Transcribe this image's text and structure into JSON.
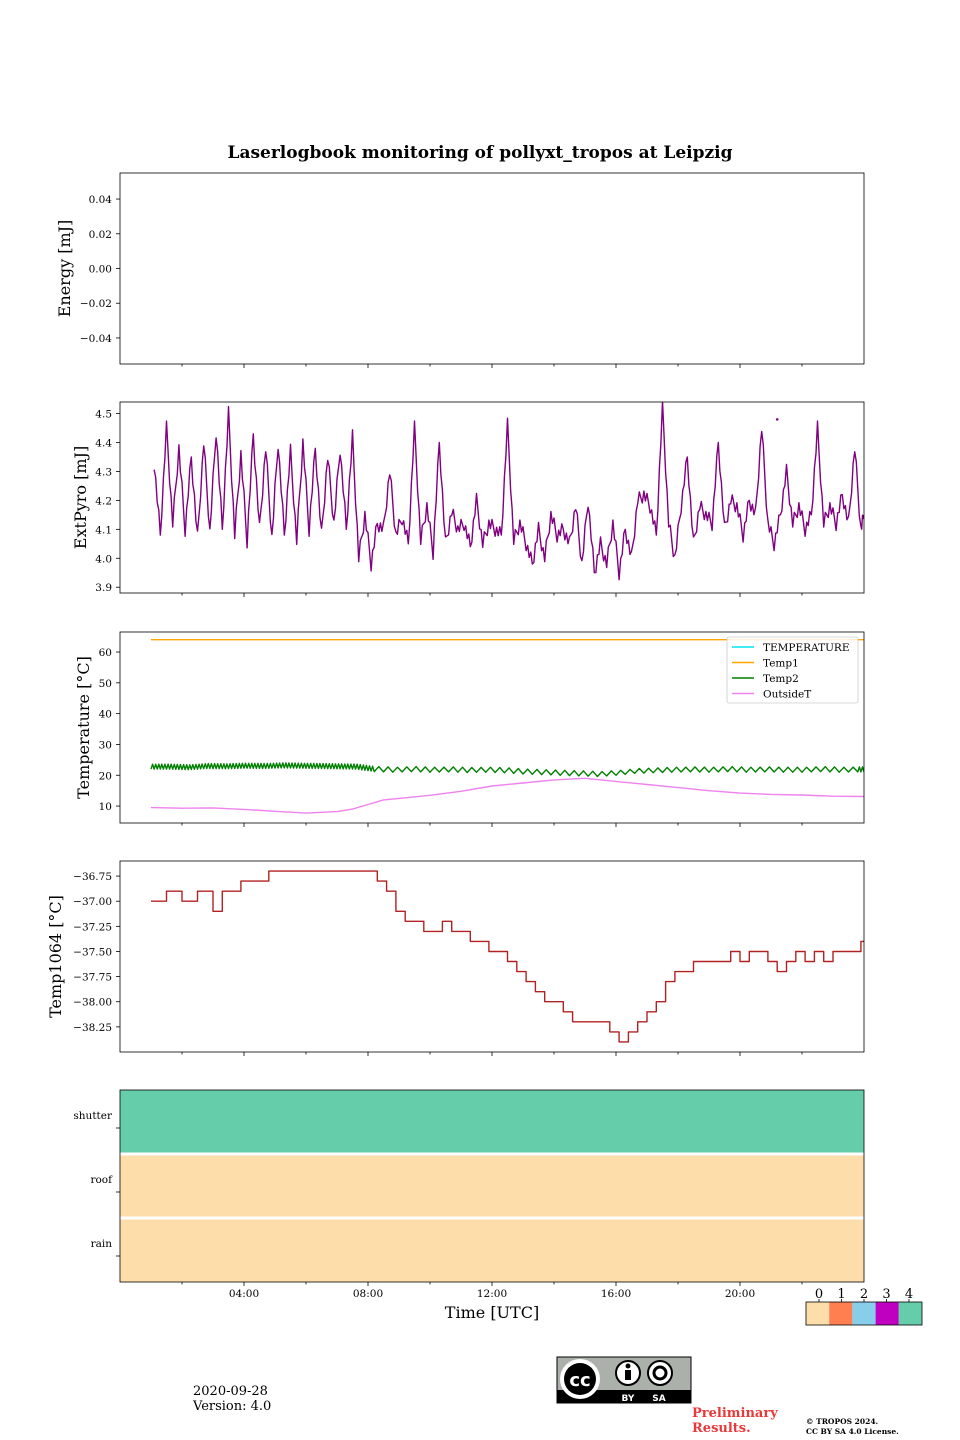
{
  "page": {
    "date": "2020-09-28",
    "version": "Version: 4.0",
    "preliminary": [
      "Preliminary",
      "Results."
    ],
    "copyright": [
      "© TROPOS 2024.",
      "CC BY SA 4.0 License."
    ],
    "license_badge": {
      "by": "BY",
      "sa": "SA",
      "cc": "cc"
    }
  },
  "chart_data": [
    {
      "type": "line",
      "title": "Laserlogbook monitoring of pollyxt_tropos at Leipzig",
      "ylabel": "Energy [mJ]",
      "xlim": [
        0,
        24
      ],
      "ylim": [
        -0.055,
        0.055
      ],
      "yticks": [
        0.04,
        0.02,
        0.0,
        -0.02,
        -0.04
      ],
      "ytick_labels": [
        "0.04",
        "0.02",
        "0.00",
        "−0.02",
        "−0.04"
      ],
      "series": []
    },
    {
      "type": "line",
      "ylabel": "ExtPyro [mJ]",
      "xlim": [
        0,
        24
      ],
      "ylim": [
        3.88,
        4.54
      ],
      "yticks": [
        4.5,
        4.4,
        4.3,
        4.2,
        4.1,
        4.0,
        3.9
      ],
      "ytick_labels": [
        "4.5",
        "4.4",
        "4.3",
        "4.2",
        "4.1",
        "4.0",
        "3.9"
      ],
      "series": [
        {
          "name": "ExtPyro",
          "color": "#800080",
          "x": [
            1.1,
            1.3,
            1.5,
            1.7,
            1.9,
            2.1,
            2.3,
            2.5,
            2.7,
            2.9,
            3.1,
            3.3,
            3.5,
            3.7,
            3.9,
            4.1,
            4.3,
            4.5,
            4.7,
            4.9,
            5.1,
            5.3,
            5.5,
            5.7,
            5.9,
            6.1,
            6.3,
            6.5,
            6.7,
            6.9,
            7.1,
            7.3,
            7.5,
            7.7,
            7.9,
            8.1,
            8.3,
            8.5,
            8.7,
            8.9,
            9.1,
            9.3,
            9.5,
            9.7,
            9.9,
            10.1,
            10.3,
            10.5,
            10.7,
            10.9,
            11.1,
            11.3,
            11.5,
            11.7,
            11.9,
            12.1,
            12.3,
            12.5,
            12.7,
            12.9,
            13.1,
            13.3,
            13.5,
            13.7,
            13.9,
            14.1,
            14.3,
            14.5,
            14.7,
            14.9,
            15.1,
            15.3,
            15.5,
            15.7,
            15.9,
            16.1,
            16.3,
            16.5,
            16.7,
            16.9,
            17.1,
            17.3,
            17.5,
            17.7,
            17.9,
            18.1,
            18.3,
            18.5,
            18.7,
            18.9,
            19.1,
            19.3,
            19.5,
            19.7,
            19.9,
            20.1,
            20.3,
            20.5,
            20.7,
            20.9,
            21.1,
            21.3,
            21.5,
            21.7,
            21.9,
            22.1,
            22.3,
            22.5,
            22.7,
            22.9,
            23.1,
            23.3,
            23.5,
            23.7,
            23.9,
            24.0
          ],
          "values": [
            4.33,
            4.08,
            4.45,
            4.12,
            4.38,
            4.1,
            4.35,
            4.07,
            4.4,
            4.09,
            4.44,
            4.1,
            4.5,
            4.08,
            4.36,
            4.06,
            4.43,
            4.1,
            4.38,
            4.07,
            4.4,
            4.08,
            4.37,
            4.06,
            4.4,
            4.1,
            4.38,
            4.08,
            4.35,
            4.12,
            4.38,
            4.1,
            4.42,
            4.0,
            4.15,
            3.98,
            4.12,
            4.1,
            4.3,
            4.08,
            4.14,
            4.05,
            4.45,
            4.06,
            4.18,
            4.02,
            4.4,
            4.05,
            4.16,
            4.1,
            4.12,
            4.04,
            4.2,
            4.05,
            4.12,
            4.1,
            4.08,
            4.46,
            4.06,
            4.12,
            4.05,
            3.98,
            4.1,
            4.0,
            4.15,
            4.08,
            4.1,
            4.05,
            4.18,
            3.98,
            4.2,
            3.95,
            4.05,
            3.98,
            4.12,
            3.95,
            4.1,
            4.0,
            4.2,
            4.22,
            4.18,
            4.08,
            4.52,
            4.12,
            4.0,
            4.18,
            4.35,
            4.05,
            4.18,
            4.15,
            4.12,
            4.4,
            4.1,
            4.2,
            4.18,
            4.08,
            4.2,
            4.15,
            4.45,
            4.12,
            4.05,
            4.15,
            4.3,
            4.12,
            4.18,
            4.1,
            4.15,
            4.45,
            4.12,
            4.18,
            4.12,
            4.22,
            4.12,
            4.38,
            4.1,
            4.15
          ],
          "isolated": [
            [
              21.2,
              4.48
            ]
          ]
        }
      ]
    },
    {
      "type": "line",
      "ylabel": "Temperature [°C]",
      "xlim": [
        0,
        24
      ],
      "ylim": [
        4.5,
        66.5
      ],
      "yticks": [
        60,
        50,
        40,
        30,
        20,
        10
      ],
      "ytick_labels": [
        "60",
        "50",
        "40",
        "30",
        "20",
        "10"
      ],
      "legend": {
        "location": "top-right",
        "entries": [
          "TEMPERATURE",
          "Temp1",
          "Temp2",
          "OutsideT"
        ]
      },
      "series": [
        {
          "name": "TEMPERATURE",
          "color": "#00e5ee",
          "x": [],
          "values": []
        },
        {
          "name": "Temp1",
          "color": "#ffa500",
          "x": [
            1.0,
            24.0
          ],
          "values": [
            64,
            64
          ]
        },
        {
          "name": "Temp2",
          "color": "#008000",
          "x": [
            1.0,
            1.6,
            2.2,
            2.8,
            3.4,
            4.0,
            4.6,
            5.2,
            5.8,
            6.4,
            7.0,
            7.6,
            8.2,
            8.8,
            9.4,
            10.0,
            10.6,
            11.2,
            11.8,
            12.4,
            13.0,
            13.6,
            14.2,
            14.8,
            15.4,
            16.0,
            16.6,
            17.2,
            17.8,
            18.4,
            19.0,
            19.6,
            20.2,
            20.8,
            21.4,
            22.0,
            22.6,
            23.2,
            23.8,
            24.0
          ],
          "values": [
            22.0,
            22.0,
            21.8,
            22.2,
            22.1,
            22.3,
            22.2,
            22.4,
            22.3,
            22.2,
            22.1,
            22.0,
            21.2,
            21.0,
            21.2,
            21.0,
            21.1,
            20.9,
            21.0,
            20.8,
            20.4,
            20.2,
            20.0,
            19.8,
            19.6,
            20.0,
            20.6,
            20.8,
            21.0,
            21.1,
            21.0,
            21.2,
            21.0,
            21.1,
            21.0,
            21.0,
            21.2,
            21.0,
            21.1,
            21.1
          ],
          "spike_amplitude": 1.6
        },
        {
          "name": "OutsideT",
          "color": "#ee82ee",
          "x": [
            1.0,
            2.0,
            3.0,
            4.0,
            5.0,
            6.0,
            7.0,
            7.5,
            8.0,
            8.5,
            9.0,
            10.0,
            11.0,
            12.0,
            13.0,
            14.0,
            15.0,
            16.0,
            17.0,
            18.0,
            19.0,
            20.0,
            21.0,
            22.0,
            23.0,
            24.0
          ],
          "values": [
            9.5,
            9.3,
            9.4,
            8.9,
            8.3,
            7.7,
            8.2,
            9.0,
            10.5,
            12.0,
            12.5,
            13.5,
            14.8,
            16.5,
            17.5,
            18.5,
            19.0,
            18.0,
            17.0,
            16.0,
            15.0,
            14.2,
            13.8,
            13.6,
            13.2,
            13.1
          ]
        }
      ]
    },
    {
      "type": "line",
      "ylabel": "Temp1064 [°C]",
      "xlim": [
        0,
        24
      ],
      "ylim": [
        -38.5,
        -36.6
      ],
      "yticks": [
        -36.75,
        -37.0,
        -37.25,
        -37.5,
        -37.75,
        -38.0,
        -38.25
      ],
      "ytick_labels": [
        "−36.75",
        "−37.00",
        "−37.25",
        "−37.50",
        "−37.75",
        "−38.00",
        "−38.25"
      ],
      "series": [
        {
          "name": "Temp1064",
          "color": "#b22222",
          "x": [
            1.0,
            1.5,
            2.0,
            2.5,
            3.0,
            3.3,
            3.6,
            3.9,
            4.2,
            4.5,
            4.8,
            5.1,
            5.5,
            6.0,
            6.5,
            7.0,
            7.5,
            8.0,
            8.3,
            8.6,
            8.9,
            9.2,
            9.5,
            9.8,
            10.1,
            10.4,
            10.7,
            11.0,
            11.3,
            11.6,
            11.9,
            12.2,
            12.5,
            12.8,
            13.1,
            13.4,
            13.7,
            14.0,
            14.3,
            14.6,
            14.9,
            15.2,
            15.5,
            15.8,
            16.1,
            16.4,
            16.7,
            17.0,
            17.3,
            17.6,
            17.9,
            18.2,
            18.5,
            18.8,
            19.1,
            19.4,
            19.7,
            20.0,
            20.3,
            20.6,
            20.9,
            21.2,
            21.5,
            21.8,
            22.1,
            22.4,
            22.7,
            23.0,
            23.3,
            23.6,
            23.9,
            24.0
          ],
          "values": [
            -37.0,
            -36.9,
            -37.0,
            -36.9,
            -37.1,
            -36.9,
            -36.9,
            -36.8,
            -36.8,
            -36.8,
            -36.7,
            -36.7,
            -36.7,
            -36.7,
            -36.7,
            -36.7,
            -36.7,
            -36.7,
            -36.8,
            -36.9,
            -37.1,
            -37.2,
            -37.2,
            -37.3,
            -37.3,
            -37.2,
            -37.3,
            -37.3,
            -37.4,
            -37.4,
            -37.5,
            -37.5,
            -37.6,
            -37.7,
            -37.8,
            -37.9,
            -38.0,
            -38.0,
            -38.1,
            -38.2,
            -38.2,
            -38.2,
            -38.2,
            -38.3,
            -38.4,
            -38.3,
            -38.2,
            -38.1,
            -38.0,
            -37.8,
            -37.7,
            -37.7,
            -37.6,
            -37.6,
            -37.6,
            -37.6,
            -37.5,
            -37.6,
            -37.5,
            -37.5,
            -37.6,
            -37.7,
            -37.6,
            -37.5,
            -37.6,
            -37.5,
            -37.6,
            -37.5,
            -37.5,
            -37.5,
            -37.4,
            -37.4
          ]
        }
      ]
    },
    {
      "type": "heatmap",
      "xlabel": "Time [UTC]",
      "xlim": [
        0,
        24
      ],
      "xticks": [
        4,
        8,
        12,
        16,
        20
      ],
      "xtick_labels": [
        "04:00",
        "08:00",
        "12:00",
        "16:00",
        "20:00"
      ],
      "rows": [
        "shutter",
        "roof",
        "rain"
      ],
      "row_values": [
        4,
        0,
        0
      ],
      "colorbar": {
        "ticks": [
          "0",
          "1",
          "2",
          "3",
          "4"
        ],
        "colors": [
          "#fddeab",
          "#ff7f50",
          "#87ceeb",
          "#c000c0",
          "#66cdaa"
        ]
      }
    }
  ]
}
